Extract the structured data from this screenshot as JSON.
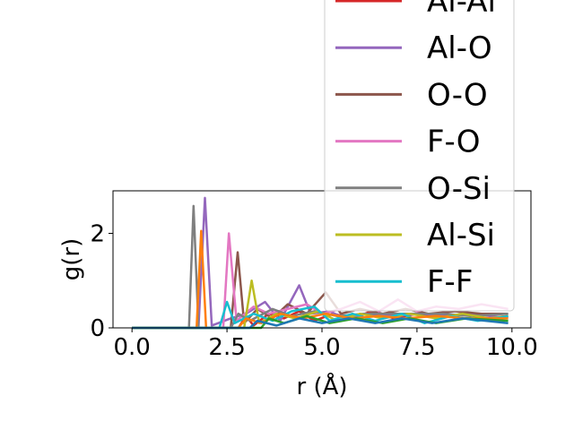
{
  "chart_data": {
    "type": "line",
    "title": "",
    "xlabel": "r ($\\AA$)",
    "xlabel_display": "r (Å)",
    "ylabel": "g(r)",
    "xlim": [
      -0.5,
      10.5
    ],
    "ylim": [
      0,
      2.9
    ],
    "xticks": [
      "0.0",
      "2.5",
      "5.0",
      "7.5",
      "10.0"
    ],
    "xtick_values": [
      0,
      2.5,
      5,
      7.5,
      10
    ],
    "yticks": [
      "0",
      "2"
    ],
    "ytick_values": [
      0,
      2
    ],
    "legend_position": "upper-right (overflowing plot)",
    "legend_entries": [
      "Al-Al",
      "Al-O",
      "O-O",
      "F-O",
      "O-Si",
      "Al-Si",
      "F-F"
    ],
    "series": [
      {
        "name": "Al-Al",
        "color": "#d62728",
        "points": [
          [
            0,
            0
          ],
          [
            2.8,
            0
          ],
          [
            3.0,
            0.25
          ],
          [
            3.2,
            0.05
          ],
          [
            3.6,
            0.3
          ],
          [
            4.0,
            0.2
          ],
          [
            4.4,
            0.35
          ],
          [
            4.8,
            0.15
          ],
          [
            5.3,
            0.3
          ],
          [
            5.8,
            0.2
          ],
          [
            6.3,
            0.35
          ],
          [
            6.9,
            0.2
          ],
          [
            7.5,
            0.3
          ],
          [
            8.1,
            0.2
          ],
          [
            8.7,
            0.3
          ],
          [
            9.3,
            0.2
          ],
          [
            9.9,
            0.25
          ]
        ]
      },
      {
        "name": "Al-O",
        "color": "#9467bd",
        "points": [
          [
            0,
            0
          ],
          [
            1.75,
            0
          ],
          [
            1.92,
            2.75
          ],
          [
            2.1,
            0.05
          ],
          [
            2.6,
            0.2
          ],
          [
            3.0,
            0.3
          ],
          [
            3.5,
            0.55
          ],
          [
            3.9,
            0.15
          ],
          [
            4.4,
            0.9
          ],
          [
            4.7,
            0.3
          ],
          [
            5.2,
            0.35
          ],
          [
            5.6,
            0.2
          ],
          [
            6.2,
            0.3
          ],
          [
            6.9,
            0.25
          ],
          [
            7.6,
            0.3
          ],
          [
            8.3,
            0.25
          ],
          [
            9.0,
            0.3
          ],
          [
            9.9,
            0.2
          ]
        ]
      },
      {
        "name": "O-O",
        "color": "#8c564b",
        "points": [
          [
            0,
            0
          ],
          [
            2.6,
            0
          ],
          [
            2.78,
            1.6
          ],
          [
            2.95,
            0.1
          ],
          [
            3.3,
            0.4
          ],
          [
            3.7,
            0.2
          ],
          [
            4.1,
            0.5
          ],
          [
            4.6,
            0.3
          ],
          [
            5.1,
            0.75
          ],
          [
            5.5,
            0.3
          ],
          [
            6.0,
            0.4
          ],
          [
            6.6,
            0.3
          ],
          [
            7.2,
            0.4
          ],
          [
            7.8,
            0.3
          ],
          [
            8.5,
            0.35
          ],
          [
            9.2,
            0.3
          ],
          [
            9.9,
            0.3
          ]
        ]
      },
      {
        "name": "F-O",
        "color": "#e377c2",
        "points": [
          [
            0,
            0
          ],
          [
            2.4,
            0
          ],
          [
            2.55,
            2.0
          ],
          [
            2.75,
            0.15
          ],
          [
            3.2,
            0.45
          ],
          [
            3.6,
            0.3
          ],
          [
            4.1,
            0.4
          ],
          [
            4.6,
            0.5
          ],
          [
            5.0,
            0.3
          ],
          [
            5.5,
            0.4
          ],
          [
            6.0,
            0.55
          ],
          [
            6.5,
            0.35
          ],
          [
            7.0,
            0.6
          ],
          [
            7.5,
            0.35
          ],
          [
            8.0,
            0.45
          ],
          [
            8.6,
            0.4
          ],
          [
            9.2,
            0.5
          ],
          [
            9.9,
            0.4
          ]
        ]
      },
      {
        "name": "O-Si",
        "color": "#7f7f7f",
        "points": [
          [
            0,
            0
          ],
          [
            1.5,
            0
          ],
          [
            1.62,
            2.58
          ],
          [
            1.75,
            0
          ],
          [
            2.6,
            0
          ],
          [
            2.8,
            0.3
          ],
          [
            3.1,
            0.15
          ],
          [
            3.7,
            0.4
          ],
          [
            4.2,
            0.25
          ],
          [
            4.8,
            0.35
          ],
          [
            5.4,
            0.25
          ],
          [
            6.1,
            0.3
          ],
          [
            6.8,
            0.3
          ],
          [
            7.5,
            0.3
          ],
          [
            8.2,
            0.3
          ],
          [
            8.9,
            0.25
          ],
          [
            9.9,
            0.3
          ]
        ]
      },
      {
        "name": "Al-Si",
        "color": "#bcbd22",
        "points": [
          [
            0,
            0
          ],
          [
            2.95,
            0
          ],
          [
            3.15,
            1.0
          ],
          [
            3.35,
            0.1
          ],
          [
            3.8,
            0.3
          ],
          [
            4.3,
            0.2
          ],
          [
            4.9,
            0.35
          ],
          [
            5.4,
            0.15
          ],
          [
            6.0,
            0.3
          ],
          [
            6.6,
            0.2
          ],
          [
            7.3,
            0.3
          ],
          [
            8.0,
            0.2
          ],
          [
            8.7,
            0.3
          ],
          [
            9.4,
            0.2
          ],
          [
            9.9,
            0.25
          ]
        ]
      },
      {
        "name": "F-F",
        "color": "#17becf",
        "points": [
          [
            0,
            0
          ],
          [
            2.3,
            0
          ],
          [
            2.5,
            0.55
          ],
          [
            2.7,
            0.1
          ],
          [
            3.2,
            0.3
          ],
          [
            3.7,
            0.15
          ],
          [
            4.2,
            0.35
          ],
          [
            4.8,
            0.45
          ],
          [
            5.2,
            0.15
          ],
          [
            5.8,
            0.3
          ],
          [
            6.4,
            0.15
          ],
          [
            7.1,
            0.3
          ],
          [
            7.7,
            0.1
          ],
          [
            8.4,
            0.25
          ],
          [
            9.1,
            0.15
          ],
          [
            9.9,
            0.25
          ]
        ]
      },
      {
        "name": "",
        "color": "#ff7f0e",
        "points": [
          [
            0,
            0
          ],
          [
            1.7,
            0
          ],
          [
            1.82,
            2.05
          ],
          [
            1.95,
            0
          ],
          [
            2.8,
            0
          ],
          [
            3.0,
            0.2
          ],
          [
            3.4,
            0.1
          ],
          [
            3.9,
            0.3
          ],
          [
            4.5,
            0.2
          ],
          [
            5.1,
            0.3
          ],
          [
            5.8,
            0.2
          ],
          [
            6.5,
            0.25
          ],
          [
            7.2,
            0.2
          ],
          [
            8.0,
            0.25
          ],
          [
            8.8,
            0.2
          ],
          [
            9.9,
            0.2
          ]
        ]
      },
      {
        "name": "",
        "color": "#2ca02c",
        "points": [
          [
            0,
            0
          ],
          [
            3.4,
            0
          ],
          [
            3.6,
            0.2
          ],
          [
            4.0,
            0.1
          ],
          [
            4.6,
            0.25
          ],
          [
            5.2,
            0.1
          ],
          [
            5.9,
            0.2
          ],
          [
            6.6,
            0.1
          ],
          [
            7.3,
            0.2
          ],
          [
            8.0,
            0.1
          ],
          [
            8.8,
            0.2
          ],
          [
            9.9,
            0.15
          ]
        ]
      },
      {
        "name": "",
        "color": "#1f77b4",
        "points": [
          [
            0,
            0
          ],
          [
            3.1,
            0
          ],
          [
            3.3,
            0.15
          ],
          [
            3.8,
            0.05
          ],
          [
            4.4,
            0.2
          ],
          [
            5.0,
            0.1
          ],
          [
            5.7,
            0.2
          ],
          [
            6.4,
            0.1
          ],
          [
            7.1,
            0.2
          ],
          [
            7.9,
            0.1
          ],
          [
            8.7,
            0.2
          ],
          [
            9.9,
            0.1
          ]
        ]
      }
    ]
  }
}
